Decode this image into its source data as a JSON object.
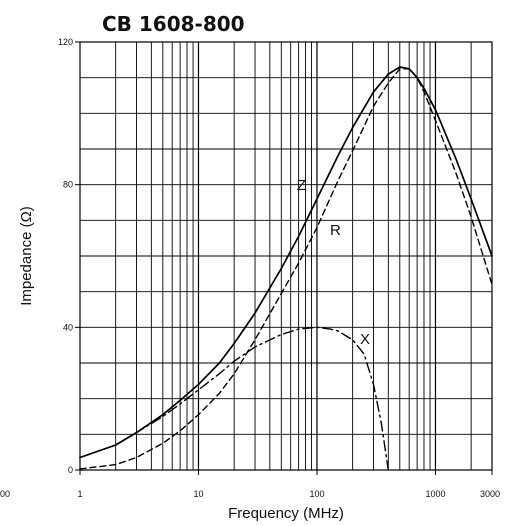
{
  "chart_data": {
    "type": "line",
    "title": "CB 1608-800",
    "xlabel": "Frequency (MHz)",
    "ylabel": "Impedance (Ω)",
    "x_scale": "log",
    "xlim": [
      1,
      3000
    ],
    "ylim": [
      0,
      120
    ],
    "x_ticks": [
      1,
      10,
      100,
      1000,
      3000
    ],
    "x_tick_labels": [
      "1",
      "10",
      "100",
      "1000",
      "3000"
    ],
    "left_edge_label": "00",
    "y_ticks": [
      0,
      40,
      80,
      120
    ],
    "y_tick_labels": [
      "0",
      "40",
      "80",
      "120"
    ],
    "grid": true,
    "legend": "none",
    "series": [
      {
        "name": "Z",
        "style": "solid",
        "x": [
          1,
          2,
          3,
          5,
          7,
          10,
          15,
          20,
          30,
          50,
          70,
          100,
          150,
          200,
          300,
          400,
          500,
          600,
          700,
          800,
          1000,
          1500,
          2000,
          3000
        ],
        "y": [
          3.5,
          7,
          10.5,
          15.5,
          19.5,
          24,
          30,
          35.5,
          44,
          56.5,
          65.5,
          76,
          88,
          96,
          106,
          111,
          113,
          112.5,
          110,
          107,
          101,
          87,
          76,
          60
        ]
      },
      {
        "name": "R",
        "style": "dashed",
        "x": [
          1,
          2,
          3,
          5,
          7,
          10,
          15,
          20,
          30,
          50,
          70,
          100,
          150,
          200,
          300,
          400,
          500,
          600,
          700,
          800,
          1000,
          1500,
          2000,
          3000
        ],
        "y": [
          0.3,
          1.5,
          3.5,
          7.5,
          11,
          15.5,
          21.5,
          27,
          36.5,
          49.5,
          58,
          68,
          81,
          89.5,
          102,
          108.5,
          112.5,
          112.5,
          110,
          106,
          98,
          83,
          71,
          52
        ]
      },
      {
        "name": "X",
        "style": "dash-dot",
        "x": [
          1,
          2,
          3,
          5,
          7,
          10,
          15,
          20,
          30,
          50,
          70,
          100,
          130,
          150,
          200,
          250,
          300,
          350,
          400
        ],
        "y": [
          3.5,
          7,
          10.5,
          15,
          18.5,
          22.5,
          27,
          30.5,
          34.5,
          38,
          39.5,
          40,
          39.5,
          39,
          36.5,
          32.5,
          24,
          13,
          0
        ]
      }
    ],
    "annotations": [
      "Z",
      "R",
      "X"
    ]
  }
}
